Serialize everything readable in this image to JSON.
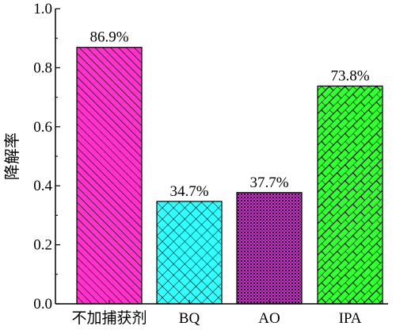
{
  "chart_data": {
    "type": "bar",
    "title": "",
    "xlabel": "",
    "ylabel": "降解率",
    "ylim": [
      0,
      1.0
    ],
    "yticks": [
      "0.0",
      "0.2",
      "0.4",
      "0.6",
      "0.8",
      "1.0"
    ],
    "categories": [
      "不加捕获剂",
      "BQ",
      "AO",
      "IPA"
    ],
    "values": [
      0.869,
      0.347,
      0.377,
      0.738
    ],
    "data_labels": [
      "86.9%",
      "34.7%",
      "37.7%",
      "73.8%"
    ],
    "bar_colors": [
      "#ff33cc",
      "#33ffff",
      "#cc33cc",
      "#33ff33"
    ],
    "bar_patterns": [
      "diagonal-hatch",
      "crosshatch",
      "dots",
      "brick"
    ],
    "grid": false,
    "legend": "none"
  }
}
